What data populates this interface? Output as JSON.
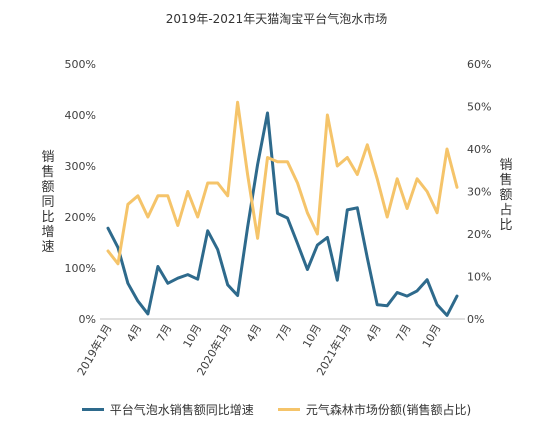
{
  "chart_data": {
    "type": "line",
    "title": "2019年-2021年天猫淘宝平台气泡水市场",
    "ylabel_left": "销售额同比增速",
    "ylabel_right": "销售额占比",
    "x_tick_labels": [
      "2019年1月",
      "4月",
      "7月",
      "10月",
      "2020年1月",
      "4月",
      "7月",
      "10月",
      "2021年1月",
      "4月",
      "7月",
      "10月"
    ],
    "x": [
      "2019-01",
      "2019-02",
      "2019-03",
      "2019-04",
      "2019-05",
      "2019-06",
      "2019-07",
      "2019-08",
      "2019-09",
      "2019-10",
      "2019-11",
      "2019-12",
      "2020-01",
      "2020-02",
      "2020-03",
      "2020-04",
      "2020-05",
      "2020-06",
      "2020-07",
      "2020-08",
      "2020-09",
      "2020-10",
      "2020-11",
      "2020-12",
      "2021-01",
      "2021-02",
      "2021-03",
      "2021-04",
      "2021-05",
      "2021-06",
      "2021-07",
      "2021-08",
      "2021-09",
      "2021-10",
      "2021-11",
      "2021-12"
    ],
    "ylim_left": [
      0,
      500
    ],
    "yticks_left": [
      "0%",
      "100%",
      "200%",
      "300%",
      "400%",
      "500%"
    ],
    "ylim_right": [
      0,
      60
    ],
    "yticks_right": [
      "0%",
      "10%",
      "20%",
      "30%",
      "40%",
      "50%",
      "60%"
    ],
    "grid": false,
    "legend_position": "bottom",
    "series": [
      {
        "name": "平台气泡水销售额同比增速",
        "axis": "left",
        "color": "#2e6a8c",
        "values": [
          178,
          140,
          70,
          35,
          10,
          103,
          70,
          80,
          87,
          78,
          173,
          136,
          67,
          46,
          180,
          303,
          404,
          207,
          198,
          148,
          97,
          145,
          160,
          76,
          214,
          218,
          120,
          28,
          26,
          52,
          45,
          55,
          77,
          28,
          7,
          45
        ]
      },
      {
        "name": "元气森林市场份额(销售额占比)",
        "axis": "right",
        "color": "#f5c46a",
        "values": [
          16,
          13,
          27,
          29,
          24,
          29,
          29,
          22,
          30,
          24,
          32,
          32,
          29,
          51,
          34,
          19,
          38,
          37,
          37,
          32,
          25,
          20,
          48,
          36,
          38,
          34,
          41,
          33,
          24,
          33,
          26,
          33,
          30,
          25,
          40,
          31
        ]
      }
    ]
  }
}
